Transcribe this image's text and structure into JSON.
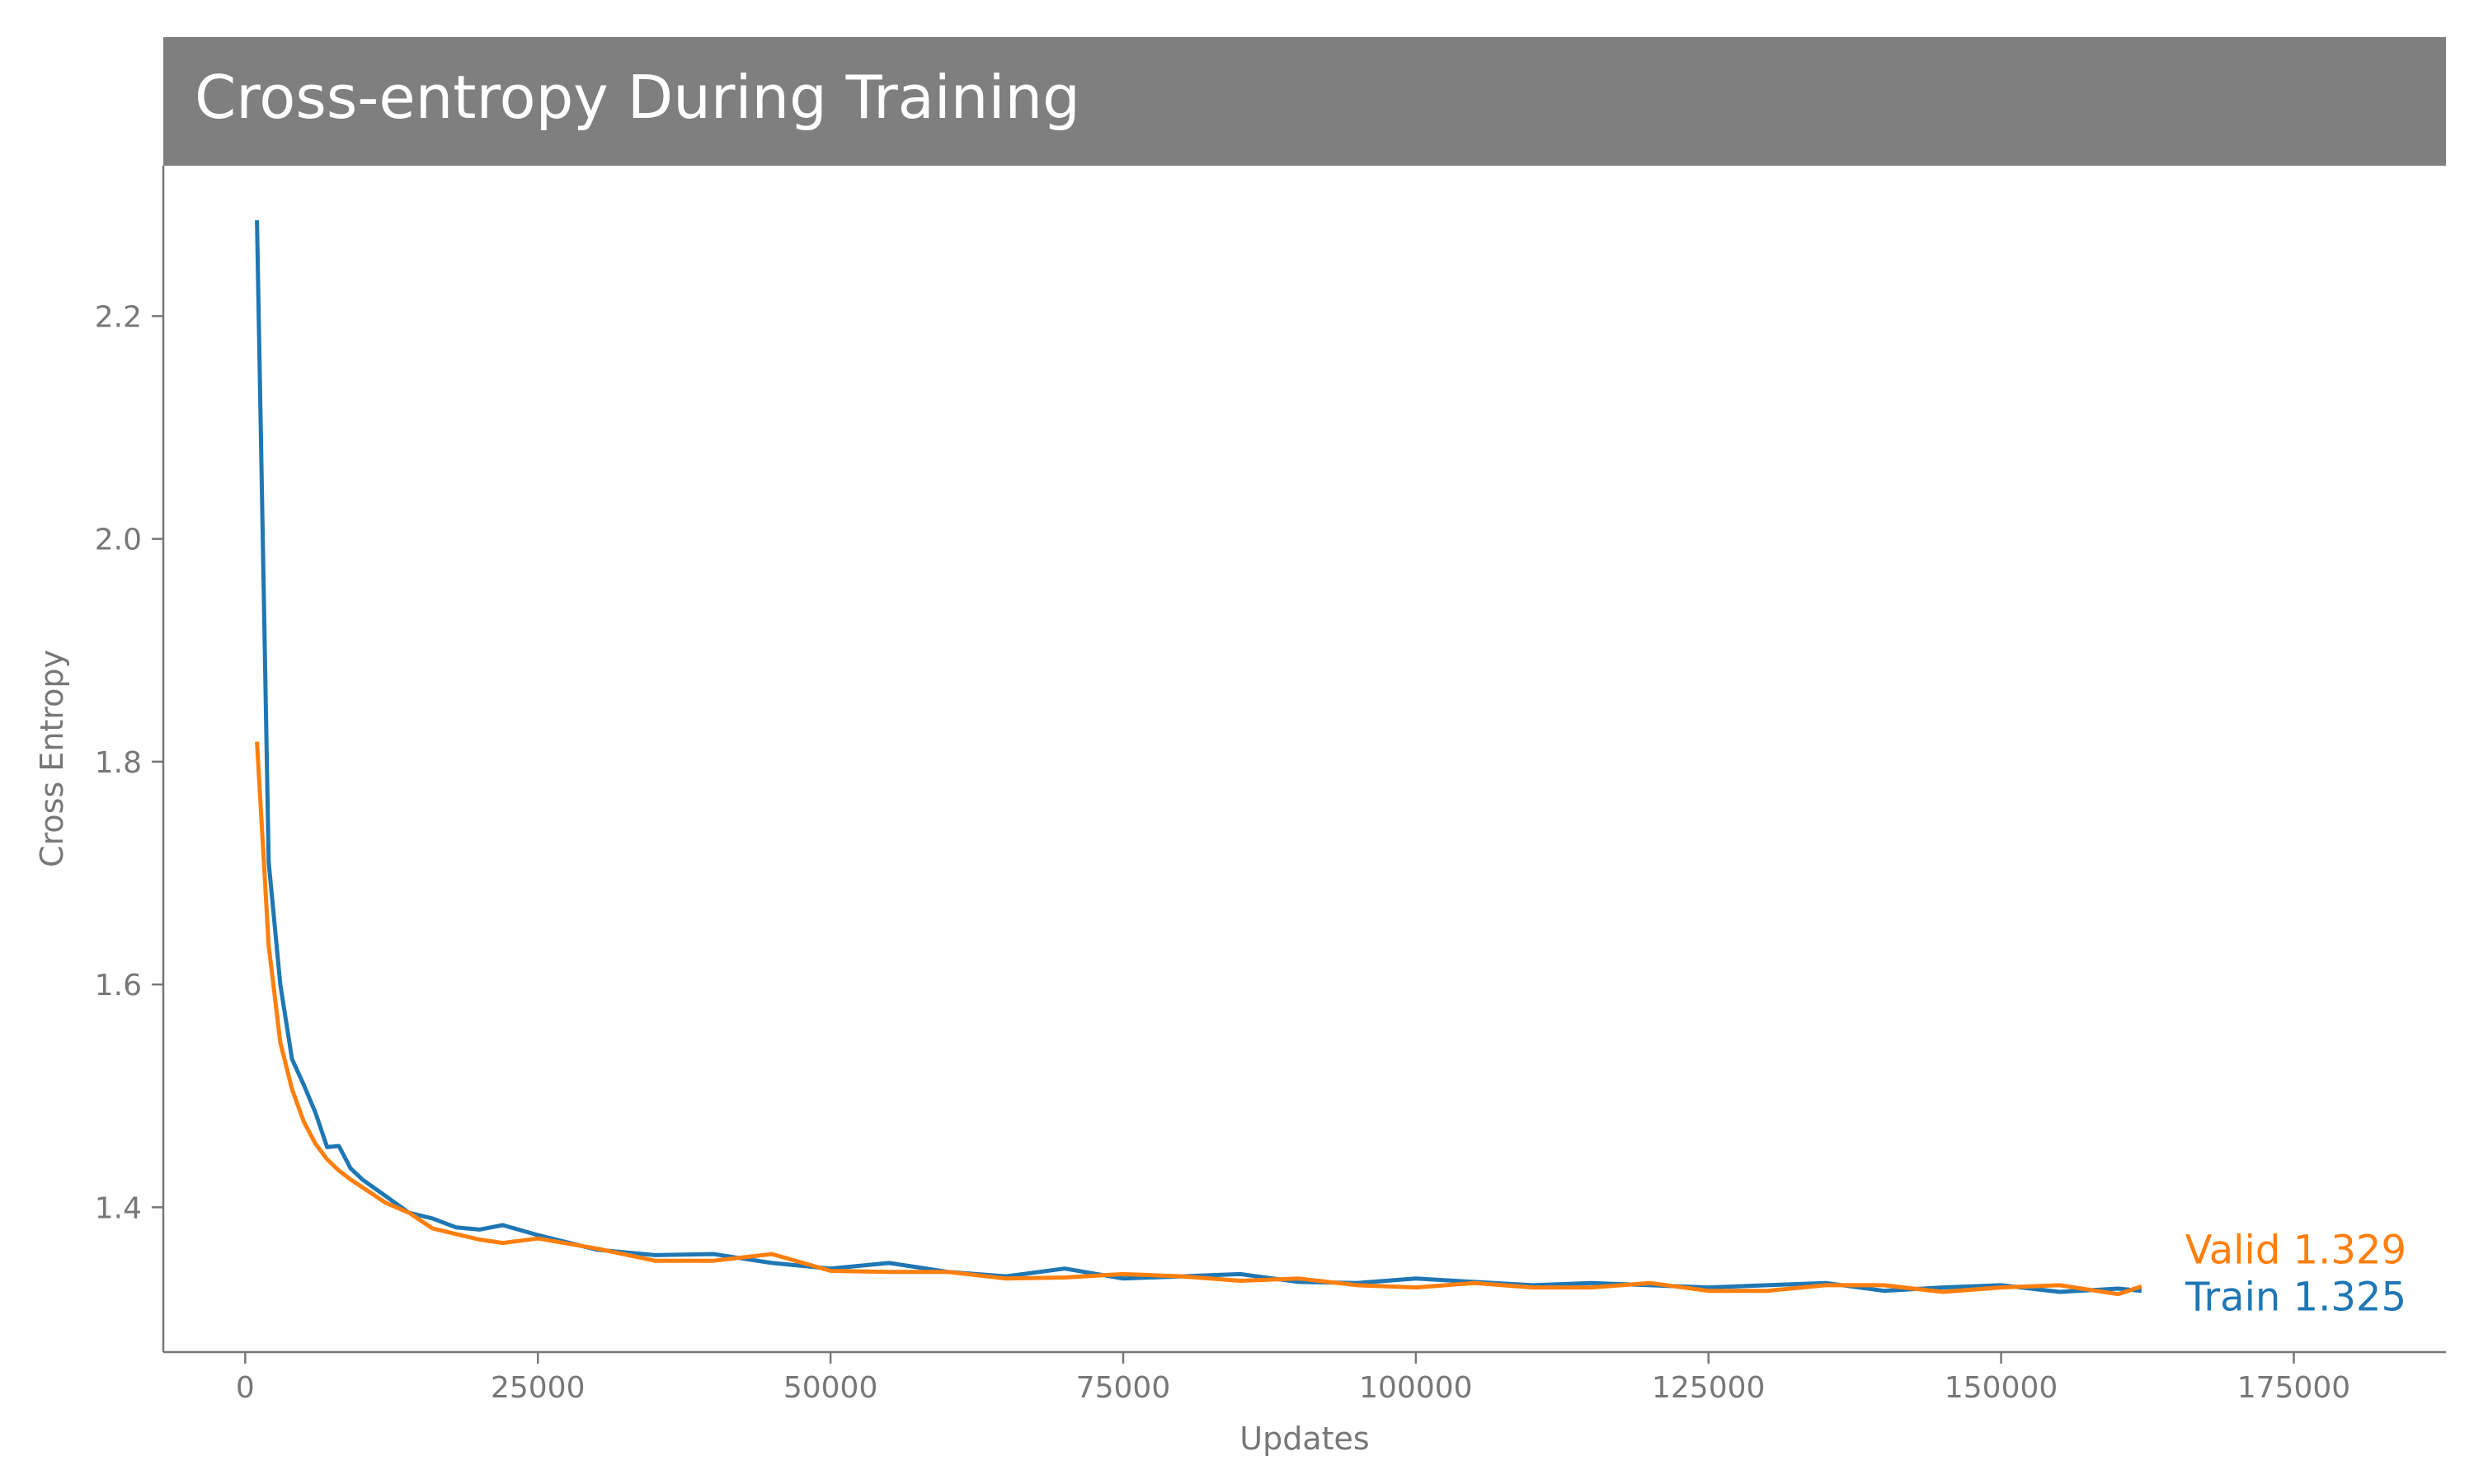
{
  "chart_data": {
    "type": "line",
    "title": "Cross-entropy During Training",
    "xlabel": "Updates",
    "ylabel": "Cross Entropy",
    "xlim": [
      -7000,
      188000
    ],
    "ylim": [
      1.27,
      2.335
    ],
    "xticks": [
      0,
      25000,
      50000,
      75000,
      100000,
      125000,
      150000,
      175000
    ],
    "yticks": [
      1.4,
      1.6,
      1.8,
      2.0,
      2.2
    ],
    "ytick_labels": [
      "1.4",
      "1.6",
      "1.8",
      "2.0",
      "2.2"
    ],
    "grid": false,
    "legend": "end-of-line labels",
    "colors": {
      "title_bar": "#7f7f7f",
      "train": "#1f77b4",
      "valid": "#ff7f0e",
      "axis": "#777777"
    },
    "x": [
      1000,
      2000,
      3000,
      4000,
      5000,
      6000,
      7000,
      8000,
      9000,
      10000,
      12000,
      14000,
      16000,
      18000,
      20000,
      22000,
      25000,
      30000,
      35000,
      40000,
      45000,
      50000,
      55000,
      60000,
      65000,
      70000,
      75000,
      80000,
      85000,
      90000,
      95000,
      100000,
      105000,
      110000,
      115000,
      120000,
      125000,
      130000,
      135000,
      140000,
      145000,
      150000,
      155000,
      160000,
      162000
    ],
    "series": [
      {
        "name": "Train",
        "end_label": "Train  1.325",
        "values": [
          2.286,
          1.71,
          1.6,
          1.533,
          1.51,
          1.485,
          1.454,
          1.455,
          1.435,
          1.425,
          1.41,
          1.395,
          1.39,
          1.382,
          1.38,
          1.384,
          1.375,
          1.362,
          1.357,
          1.358,
          1.35,
          1.345,
          1.35,
          1.342,
          1.338,
          1.345,
          1.336,
          1.338,
          1.34,
          1.333,
          1.332,
          1.336,
          1.333,
          1.33,
          1.332,
          1.33,
          1.328,
          1.33,
          1.332,
          1.325,
          1.328,
          1.33,
          1.324,
          1.327,
          1.325
        ]
      },
      {
        "name": "Valid",
        "end_label": "Valid  1.329",
        "values": [
          1.818,
          1.635,
          1.548,
          1.506,
          1.477,
          1.457,
          1.443,
          1.433,
          1.425,
          1.418,
          1.404,
          1.395,
          1.381,
          1.376,
          1.371,
          1.368,
          1.372,
          1.363,
          1.352,
          1.352,
          1.358,
          1.343,
          1.342,
          1.342,
          1.336,
          1.337,
          1.34,
          1.338,
          1.334,
          1.336,
          1.33,
          1.328,
          1.332,
          1.328,
          1.328,
          1.332,
          1.325,
          1.325,
          1.33,
          1.33,
          1.324,
          1.328,
          1.33,
          1.322,
          1.329
        ]
      }
    ]
  }
}
